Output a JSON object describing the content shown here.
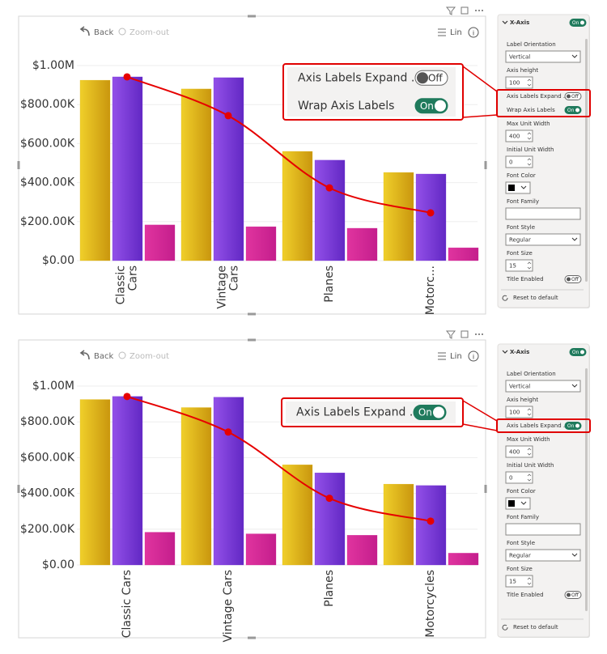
{
  "toolbar": {
    "back": "Back",
    "zoom_out": "Zoom-out",
    "scale": "Lin"
  },
  "chart_data": [
    {
      "type": "bar",
      "wrap_labels": true,
      "categories": [
        "Classic Cars",
        "Vintage Cars",
        "Planes",
        "Motorc..."
      ],
      "ylim": [
        0,
        1000000
      ],
      "yticks": [
        {
          "value": 0,
          "label": "$0.00"
        },
        {
          "value": 200000,
          "label": "$200.00K"
        },
        {
          "value": 400000,
          "label": "$400.00K"
        },
        {
          "value": 600000,
          "label": "$600.00K"
        },
        {
          "value": 800000,
          "label": "$800.00K"
        },
        {
          "value": 1000000,
          "label": "$1.00M"
        }
      ],
      "grid": true,
      "series": [
        {
          "type": "bar",
          "color": "#e2b814",
          "values": [
            925000,
            880000,
            560000,
            452000
          ]
        },
        {
          "type": "bar",
          "color": "#7b3ad8",
          "values": [
            942000,
            938000,
            515000,
            444000
          ]
        },
        {
          "type": "bar",
          "color": "#d4279a",
          "values": [
            183000,
            174000,
            166000,
            66000
          ]
        },
        {
          "type": "line",
          "color": "#e60000",
          "values": [
            942000,
            743000,
            373000,
            245000
          ]
        }
      ]
    },
    {
      "type": "bar",
      "wrap_labels": false,
      "categories": [
        "Classic Cars",
        "Vintage Cars",
        "Planes",
        "Motorcycles"
      ],
      "ylim": [
        0,
        1000000
      ],
      "yticks": [
        {
          "value": 0,
          "label": "$0.00"
        },
        {
          "value": 200000,
          "label": "$200.00K"
        },
        {
          "value": 400000,
          "label": "$400.00K"
        },
        {
          "value": 600000,
          "label": "$600.00K"
        },
        {
          "value": 800000,
          "label": "$800.00K"
        },
        {
          "value": 1000000,
          "label": "$1.00M"
        }
      ],
      "grid": true,
      "series": [
        {
          "type": "bar",
          "color": "#e2b814",
          "values": [
            925000,
            880000,
            560000,
            452000
          ]
        },
        {
          "type": "bar",
          "color": "#7b3ad8",
          "values": [
            942000,
            938000,
            515000,
            444000
          ]
        },
        {
          "type": "bar",
          "color": "#d4279a",
          "values": [
            183000,
            174000,
            166000,
            66000
          ]
        },
        {
          "type": "line",
          "color": "#e60000",
          "values": [
            942000,
            743000,
            373000,
            245000
          ]
        }
      ]
    }
  ],
  "panels": [
    {
      "header": "X-Axis",
      "header_toggle": "On",
      "header_on": true,
      "reset": "Reset to default",
      "items": [
        {
          "label": "Label Orientation",
          "kind": "dropdown",
          "value": "Vertical"
        },
        {
          "label": "Axis height",
          "kind": "spin",
          "value": 100
        },
        {
          "label": "Axis Labels Expand ...",
          "kind": "toggle",
          "value": "Off",
          "on": false,
          "highlighted": true
        },
        {
          "label": "Wrap Axis Labels",
          "kind": "toggle",
          "value": "On",
          "on": true,
          "highlighted": true
        },
        {
          "label": "Max Unit Width",
          "kind": "spin",
          "value": 400
        },
        {
          "label": "Initial Unit Width",
          "kind": "spin",
          "value": 0
        },
        {
          "label": "Font Color",
          "kind": "color",
          "color": "#000000"
        },
        {
          "label": "Font Family",
          "kind": "input"
        },
        {
          "label": "Font Style",
          "kind": "dropdown",
          "value": "Regular"
        },
        {
          "label": "Font Size",
          "kind": "spin",
          "value": 15
        },
        {
          "label": "Title Enabled",
          "kind": "toggle",
          "value": "Off",
          "on": false
        }
      ]
    },
    {
      "header": "X-Axis",
      "header_toggle": "On",
      "header_on": true,
      "reset": "Reset to default",
      "items": [
        {
          "label": "Label Orientation",
          "kind": "dropdown",
          "value": "Vertical"
        },
        {
          "label": "Axis height",
          "kind": "spin",
          "value": 100
        },
        {
          "label": "Axis Labels Expand ...",
          "kind": "toggle",
          "value": "On",
          "on": true,
          "highlighted": true
        },
        {
          "label": "Max Unit Width",
          "kind": "spin",
          "value": 400
        },
        {
          "label": "Initial Unit Width",
          "kind": "spin",
          "value": 0
        },
        {
          "label": "Font Color",
          "kind": "color",
          "color": "#000000"
        },
        {
          "label": "Font Family",
          "kind": "input"
        },
        {
          "label": "Font Style",
          "kind": "dropdown",
          "value": "Regular"
        },
        {
          "label": "Font Size",
          "kind": "spin",
          "value": 15
        },
        {
          "label": "Title Enabled",
          "kind": "toggle",
          "value": "Off",
          "on": false
        }
      ]
    }
  ]
}
